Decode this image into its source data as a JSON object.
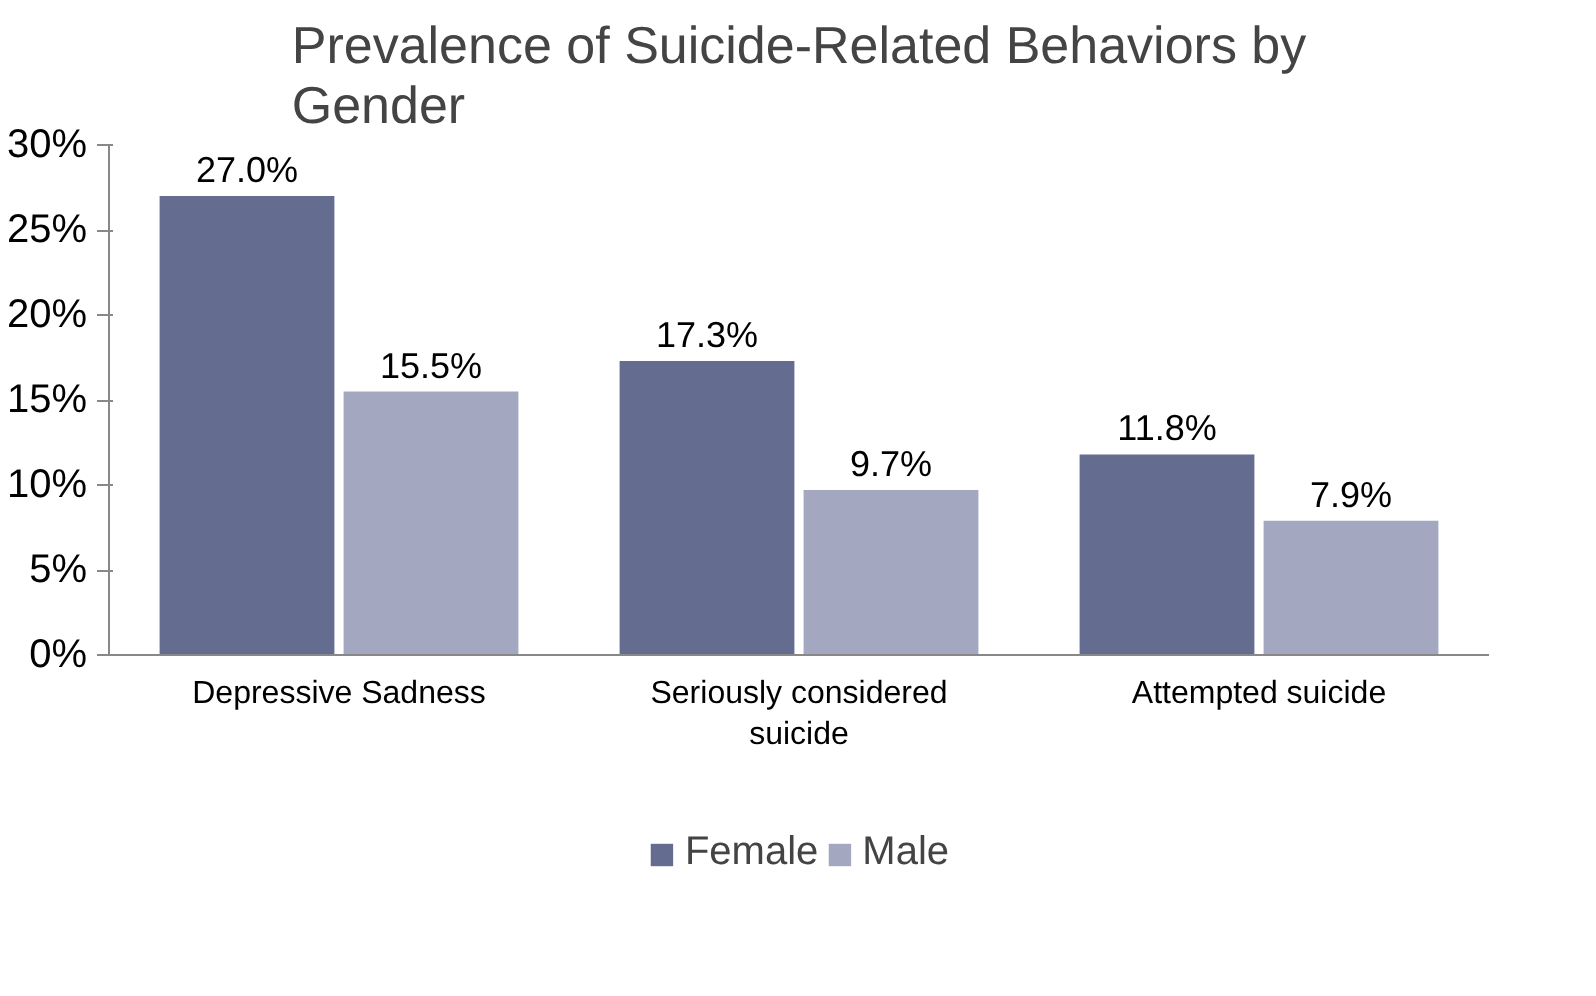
{
  "chart_data": {
    "type": "bar",
    "title": "Prevalence of Suicide-Related Behaviors by Gender",
    "categories": [
      "Depressive Sadness",
      "Seriously considered suicide",
      "Attempted suicide"
    ],
    "series": [
      {
        "name": "Female",
        "color": "#646c8f",
        "values": [
          27.0,
          17.3,
          11.8
        ],
        "value_labels": [
          "27.0%",
          "17.3%",
          "11.8%"
        ]
      },
      {
        "name": "Male",
        "color": "#a3a7bf",
        "values": [
          15.5,
          9.7,
          7.9
        ],
        "value_labels": [
          "15.5%",
          "9.7%",
          "7.9%"
        ]
      }
    ],
    "ylim": [
      0,
      30
    ],
    "yticks": [
      {
        "value": 0,
        "label": "0%"
      },
      {
        "value": 5,
        "label": "5%"
      },
      {
        "value": 10,
        "label": "10%"
      },
      {
        "value": 15,
        "label": "15%"
      },
      {
        "value": 20,
        "label": "20%"
      },
      {
        "value": 25,
        "label": "25%"
      },
      {
        "value": 30,
        "label": "30%"
      }
    ],
    "grid": false,
    "legend": "bottom"
  }
}
